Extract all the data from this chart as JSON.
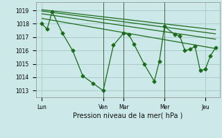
{
  "background_color": "#cce8e8",
  "grid_color": "#aacccc",
  "line_color": "#1a6b1a",
  "title": "Pression niveau de la mer( hPa )",
  "ylabel_ticks": [
    1013,
    1014,
    1015,
    1016,
    1017,
    1018,
    1019
  ],
  "ylim": [
    1012.5,
    1019.6
  ],
  "x_tick_labels": [
    "Lun",
    "Ven",
    "Mar",
    "Mer",
    "Jeu"
  ],
  "x_tick_positions": [
    0.0,
    3.0,
    4.0,
    6.0,
    8.0
  ],
  "xlim": [
    -0.3,
    8.7
  ],
  "main_series_x": [
    0.0,
    0.25,
    0.5,
    1.0,
    1.5,
    2.0,
    2.5,
    3.0,
    3.5,
    4.0,
    4.25,
    4.5,
    5.0,
    5.5,
    5.75,
    6.0,
    6.5,
    6.75,
    7.0,
    7.25,
    7.5,
    7.75,
    8.0,
    8.25,
    8.5
  ],
  "main_series_y": [
    1018.0,
    1017.6,
    1018.9,
    1017.3,
    1016.0,
    1014.1,
    1013.55,
    1013.0,
    1016.4,
    1017.3,
    1017.2,
    1016.5,
    1015.0,
    1013.7,
    1015.2,
    1017.8,
    1017.2,
    1017.1,
    1016.0,
    1016.1,
    1016.3,
    1014.5,
    1014.6,
    1015.6,
    1016.2
  ],
  "trend_lines": [
    {
      "x": [
        0.0,
        8.5
      ],
      "y": [
        1019.05,
        1017.55
      ]
    },
    {
      "x": [
        0.0,
        8.5
      ],
      "y": [
        1018.95,
        1017.25
      ]
    },
    {
      "x": [
        0.0,
        8.5
      ],
      "y": [
        1018.75,
        1016.85
      ]
    },
    {
      "x": [
        0.0,
        8.5
      ],
      "y": [
        1018.4,
        1016.15
      ]
    }
  ],
  "vline_positions": [
    3.0,
    4.0,
    6.0
  ],
  "vline_color": "#446644",
  "marker": "D",
  "marker_size": 2.5,
  "linewidth": 0.9,
  "tick_fontsize": 5.5,
  "xlabel_fontsize": 7
}
